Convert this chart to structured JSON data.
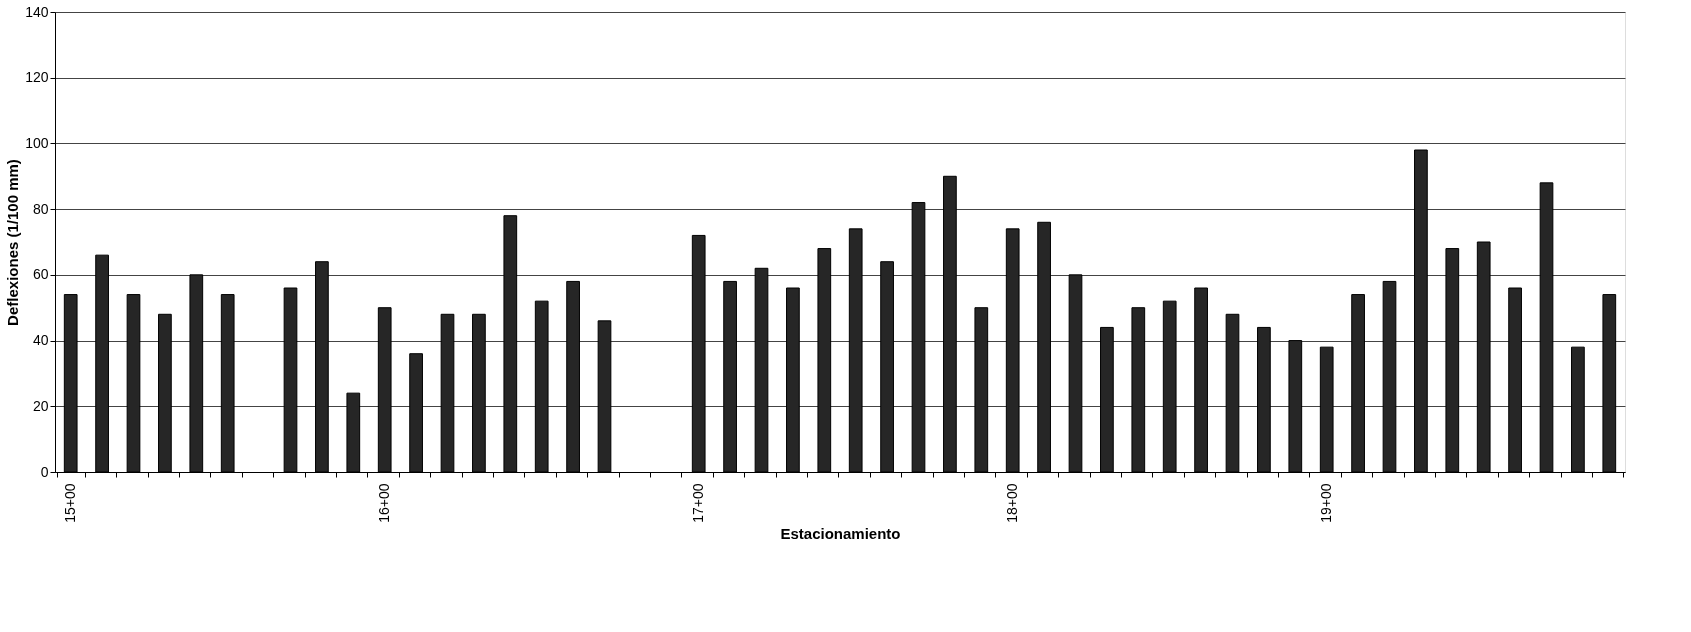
{
  "chart_data": {
    "type": "bar",
    "xlabel": "Estacionamiento",
    "ylabel": "Deflexiones (1/100 mm)",
    "categories": [
      "15+00",
      null,
      null,
      null,
      null,
      null,
      null,
      null,
      null,
      null,
      "16+00",
      null,
      null,
      null,
      null,
      null,
      null,
      null,
      null,
      null,
      "17+00",
      null,
      null,
      null,
      null,
      null,
      null,
      null,
      null,
      null,
      "18+00",
      null,
      null,
      null,
      null,
      null,
      null,
      null,
      null,
      null,
      "19+00",
      null,
      null,
      null,
      null,
      null,
      null,
      null,
      null,
      null
    ],
    "values": [
      54,
      66,
      54,
      48,
      60,
      54,
      null,
      56,
      64,
      24,
      50,
      36,
      48,
      48,
      78,
      52,
      58,
      46,
      null,
      null,
      72,
      58,
      62,
      56,
      68,
      74,
      64,
      82,
      90,
      50,
      74,
      76,
      60,
      44,
      50,
      52,
      56,
      48,
      44,
      40,
      38,
      54,
      58,
      98,
      68,
      70,
      56,
      88,
      38,
      54
    ],
    "color": "#262626",
    "ylim": [
      0,
      140
    ],
    "yticks": [
      0,
      20,
      40,
      60,
      80,
      100,
      120,
      140
    ],
    "grid": "y"
  }
}
